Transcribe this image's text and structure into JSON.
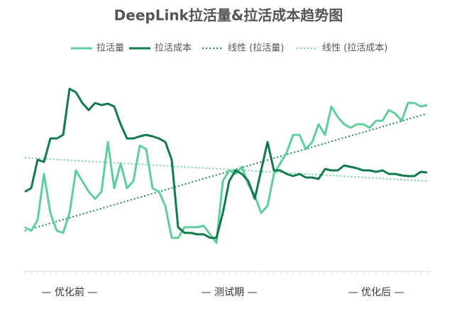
{
  "chart_data": {
    "type": "line",
    "title": "DeepLink拉活量&拉活成本趋势图",
    "categories": [
      null,
      null,
      null,
      null,
      null,
      null,
      null,
      "— 优化前 —",
      null,
      null,
      null,
      null,
      null,
      null,
      null,
      null,
      null,
      null,
      null,
      null,
      null,
      null,
      null,
      null,
      null,
      null,
      null,
      null,
      null,
      null,
      null,
      null,
      "— 测试期 —",
      null,
      null,
      null,
      null,
      null,
      null,
      null,
      null,
      null,
      null,
      null,
      null,
      null,
      null,
      null,
      null,
      null,
      null,
      null,
      null,
      null,
      null,
      "— 优化后 —",
      null,
      null,
      null,
      null,
      null,
      null,
      null,
      null
    ],
    "ylim": [
      0,
      280
    ],
    "series": [
      {
        "name": "拉活量",
        "color": "#5ccf9b",
        "values": [
          60,
          55,
          70,
          135,
          80,
          55,
          52,
          80,
          140,
          125,
          110,
          100,
          110,
          180,
          115,
          150,
          115,
          125,
          175,
          170,
          115,
          110,
          90,
          45,
          45,
          60,
          60,
          60,
          62,
          50,
          38,
          125,
          140,
          135,
          145,
          120,
          105,
          80,
          90,
          135,
          150,
          165,
          190,
          190,
          170,
          180,
          205,
          190,
          230,
          215,
          205,
          200,
          205,
          205,
          200,
          210,
          210,
          225,
          220,
          210,
          235,
          235,
          230,
          232
        ]
      },
      {
        "name": "拉活成本",
        "color": "#12794a",
        "values": [
          110,
          115,
          155,
          152,
          185,
          185,
          190,
          255,
          250,
          235,
          225,
          235,
          232,
          234,
          230,
          205,
          185,
          185,
          188,
          190,
          188,
          185,
          180,
          155,
          60,
          52,
          52,
          50,
          50,
          45,
          45,
          80,
          125,
          140,
          135,
          125,
          100,
          140,
          180,
          140,
          140,
          135,
          132,
          135,
          130,
          130,
          128,
          142,
          140,
          140,
          147,
          145,
          143,
          140,
          140,
          138,
          140,
          135,
          135,
          133,
          132,
          132,
          138,
          137
        ]
      }
    ],
    "trendlines": [
      {
        "name": "线性 (拉活量)",
        "color": "#1e8a52",
        "values": [
          55,
          220
        ]
      },
      {
        "name": "线性 (拉活成本)",
        "color": "#6fd3a3",
        "values": [
          158,
          125
        ]
      }
    ]
  }
}
